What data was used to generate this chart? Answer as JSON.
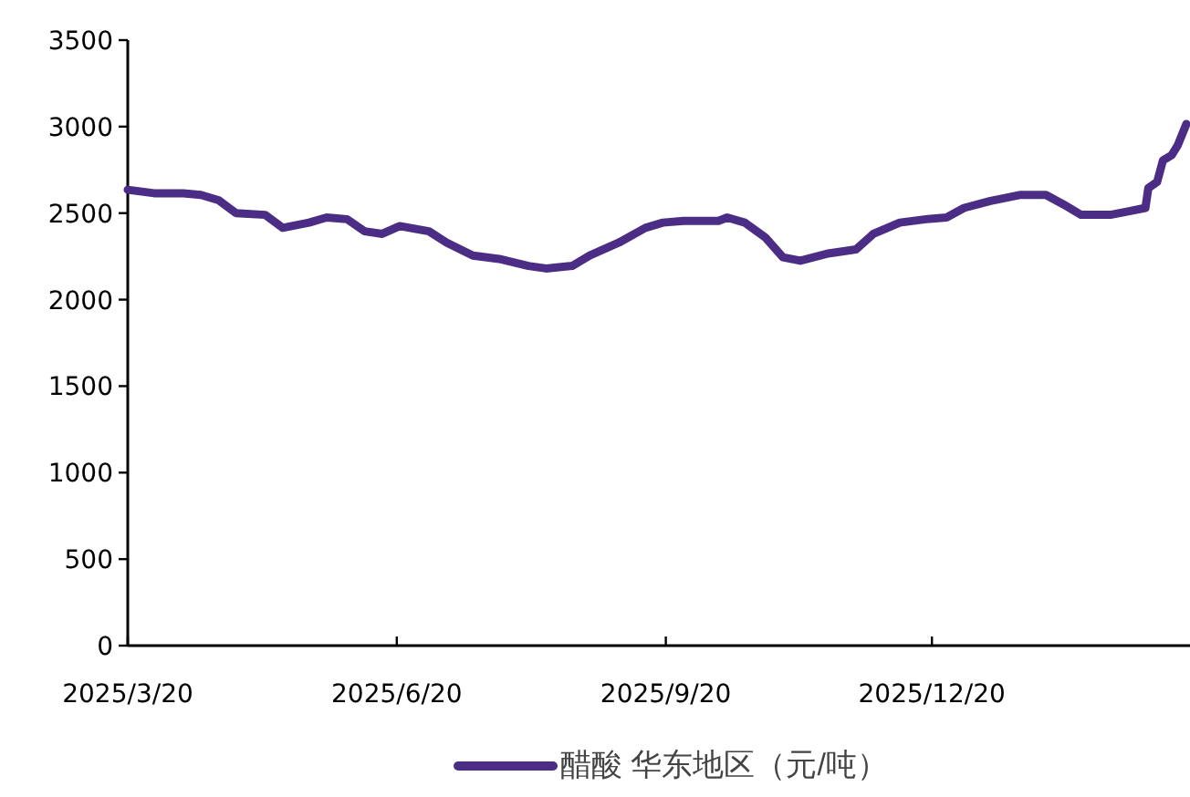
{
  "chart_data": {
    "type": "line",
    "x": [
      "2025-03-20",
      "2025-03-29",
      "2025-04-08",
      "2025-04-14",
      "2025-04-20",
      "2025-04-26",
      "2025-05-06",
      "2025-05-12",
      "2025-05-21",
      "2025-05-27",
      "2025-06-03",
      "2025-06-09",
      "2025-06-15",
      "2025-06-21",
      "2025-07-01",
      "2025-07-07",
      "2025-07-16",
      "2025-07-25",
      "2025-08-04",
      "2025-08-10",
      "2025-08-19",
      "2025-08-25",
      "2025-09-04",
      "2025-09-13",
      "2025-09-19",
      "2025-09-26",
      "2025-10-08",
      "2025-10-11",
      "2025-10-17",
      "2025-10-24",
      "2025-10-30",
      "2025-11-05",
      "2025-11-14",
      "2025-11-24",
      "2025-11-30",
      "2025-12-09",
      "2025-12-18",
      "2025-12-25",
      "2025-12-31",
      "2026-01-09",
      "2026-01-19",
      "2026-01-28",
      "2026-02-03",
      "2026-02-09",
      "2026-02-19",
      "2026-02-25",
      "2026-03-03",
      "2026-03-04",
      "2026-03-07",
      "2026-03-09",
      "2026-03-12",
      "2026-03-14",
      "2026-03-17"
    ],
    "series": [
      {
        "name": "醋酸 华东地区（元/吨）",
        "color": "#4b2d85",
        "values": [
          2635,
          2615,
          2615,
          2605,
          2575,
          2500,
          2490,
          2415,
          2445,
          2475,
          2465,
          2395,
          2380,
          2425,
          2395,
          2330,
          2255,
          2235,
          2195,
          2180,
          2195,
          2255,
          2330,
          2415,
          2445,
          2455,
          2455,
          2475,
          2445,
          2360,
          2245,
          2225,
          2265,
          2290,
          2380,
          2445,
          2465,
          2475,
          2530,
          2570,
          2605,
          2605,
          2550,
          2490,
          2490,
          2510,
          2530,
          2645,
          2680,
          2805,
          2835,
          2890,
          3015
        ]
      }
    ],
    "xlim": [
      "2025-03-20",
      "2026-03-17"
    ],
    "ylim": [
      0,
      3500
    ],
    "yticks": [
      0,
      500,
      1000,
      1500,
      2000,
      2500,
      3000,
      3500
    ],
    "xticks": [
      {
        "value": "2025-03-20",
        "label": "2025/3/20"
      },
      {
        "value": "2025-06-20",
        "label": "2025/6/20"
      },
      {
        "value": "2025-09-20",
        "label": "2025/9/20"
      },
      {
        "value": "2025-12-20",
        "label": "2025/12/20"
      }
    ],
    "grid": false,
    "legend": "bottom",
    "marker": "none",
    "line_style": "solid"
  }
}
